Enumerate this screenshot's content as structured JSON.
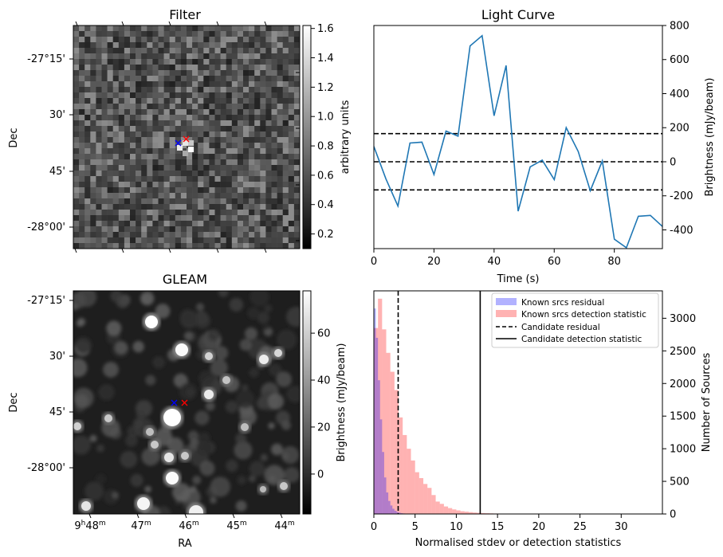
{
  "panels": {
    "filter": {
      "title": "Filter",
      "ylabel": "Dec",
      "dec_ticks": [
        "-27°15'",
        "30'",
        "45'",
        "-28°00'"
      ],
      "colorbar": {
        "label": "arbitrary units",
        "ticks": [
          "1.6",
          "1.4",
          "1.2",
          "1.0",
          "0.8",
          "0.6",
          "0.4",
          "0.2"
        ],
        "range": [
          0.1,
          1.62
        ]
      },
      "markers": [
        {
          "symbol": "x",
          "color": "#0000ff"
        },
        {
          "symbol": "x",
          "color": "#ff0000"
        }
      ]
    },
    "gleam": {
      "title": "GLEAM",
      "ylabel": "Dec",
      "xlabel": "RA",
      "dec_ticks": [
        "-27°15'",
        "30'",
        "45'",
        "-28°00'"
      ],
      "ra_ticks": [
        {
          "main": "9",
          "h": "h",
          "min": "48",
          "m": "m"
        },
        {
          "main": "47",
          "m": "m"
        },
        {
          "main": "46",
          "m": "m"
        },
        {
          "main": "45",
          "m": "m"
        },
        {
          "main": "44",
          "m": "m"
        }
      ],
      "colorbar": {
        "label": "Brightness (mJy/beam)",
        "ticks": [
          "60",
          "40",
          "20",
          "0"
        ],
        "range": [
          -17,
          78
        ]
      },
      "markers": [
        {
          "symbol": "x",
          "color": "#0000ff"
        },
        {
          "symbol": "x",
          "color": "#ff0000"
        }
      ]
    }
  },
  "chart_data": [
    {
      "type": "line",
      "title": "Light Curve",
      "xlabel": "Time (s)",
      "ylabel": "Brightness (mJy/beam)",
      "xlim": [
        0,
        96
      ],
      "ylim": [
        -510,
        800
      ],
      "xticks": [
        0,
        20,
        40,
        60,
        80
      ],
      "yticks": [
        -400,
        -200,
        0,
        200,
        400,
        600,
        800
      ],
      "series": [
        {
          "color": "#1f77b4",
          "x": [
            0,
            4,
            8,
            12,
            16,
            20,
            24,
            28,
            32,
            36,
            40,
            44,
            48,
            52,
            56,
            60,
            64,
            68,
            72,
            76,
            80,
            84,
            88,
            92,
            96
          ],
          "y": [
            90,
            -100,
            -260,
            110,
            115,
            -75,
            180,
            150,
            680,
            740,
            270,
            565,
            -290,
            -30,
            10,
            -105,
            200,
            60,
            -170,
            5,
            -455,
            -505,
            -320,
            -315,
            -380
          ]
        }
      ],
      "hlines": [
        {
          "y": 165,
          "style": "dashed",
          "color": "#000000"
        },
        {
          "y": 0,
          "style": "dashed",
          "color": "#000000"
        },
        {
          "y": -165,
          "style": "dashed",
          "color": "#000000"
        }
      ]
    },
    {
      "type": "bar",
      "xlabel": "Normalised stdev or detection statistics",
      "ylabel": "Number of Sources",
      "xlim": [
        0,
        35
      ],
      "ylim": [
        0,
        3420
      ],
      "xticks": [
        0,
        5,
        10,
        15,
        20,
        25,
        30
      ],
      "yticks": [
        0,
        500,
        1000,
        1500,
        2000,
        2500,
        3000
      ],
      "legend_position": "top-right",
      "histograms": [
        {
          "name": "Known srcs residual",
          "color": "#0000ff",
          "alpha": 0.3,
          "bin_edges": [
            0,
            0.25,
            0.5,
            0.75,
            1.0,
            1.25,
            1.5,
            1.75,
            2.0,
            2.25,
            2.5,
            2.75,
            3.0,
            3.25,
            3.5,
            3.75,
            4.0
          ],
          "counts": [
            3150,
            2700,
            2050,
            1450,
            950,
            560,
            330,
            200,
            130,
            80,
            50,
            30,
            20,
            12,
            8,
            5
          ]
        },
        {
          "name": "Known srcs detection statistic",
          "color": "#ff0000",
          "alpha": 0.3,
          "bin_edges": [
            0,
            0.5,
            1.0,
            1.5,
            2.0,
            2.5,
            3.0,
            3.5,
            4.0,
            4.5,
            5.0,
            5.5,
            6.0,
            6.5,
            7.0,
            7.5,
            8.0,
            8.5,
            9.0,
            9.5,
            10.0,
            10.5,
            11.0,
            11.5,
            12.0,
            12.5,
            13.0,
            13.5,
            14.0,
            14.5,
            15.0,
            15.5,
            16.0,
            16.5,
            17.0,
            17.5,
            18.0,
            18.5,
            19.0,
            19.5,
            20.0,
            20.5,
            21.0,
            21.5,
            22.0,
            22.5,
            23.0,
            23.5,
            24.0,
            24.5,
            25.0
          ],
          "counts": [
            2850,
            3300,
            2830,
            2470,
            2180,
            1900,
            1480,
            1210,
            1000,
            820,
            640,
            550,
            460,
            400,
            290,
            190,
            155,
            115,
            90,
            70,
            55,
            42,
            35,
            28,
            22,
            18,
            14,
            11,
            9,
            7,
            6,
            5,
            4,
            4,
            3,
            3,
            2,
            2,
            2,
            2,
            1,
            1,
            1,
            1,
            1,
            1,
            1,
            1,
            1,
            1
          ]
        }
      ],
      "vlines": [
        {
          "name": "Candidate residual",
          "x": 2.95,
          "style": "dashed",
          "color": "#000000"
        },
        {
          "name": "Candidate detection statistic",
          "x": 12.9,
          "style": "solid",
          "color": "#000000"
        }
      ]
    }
  ]
}
